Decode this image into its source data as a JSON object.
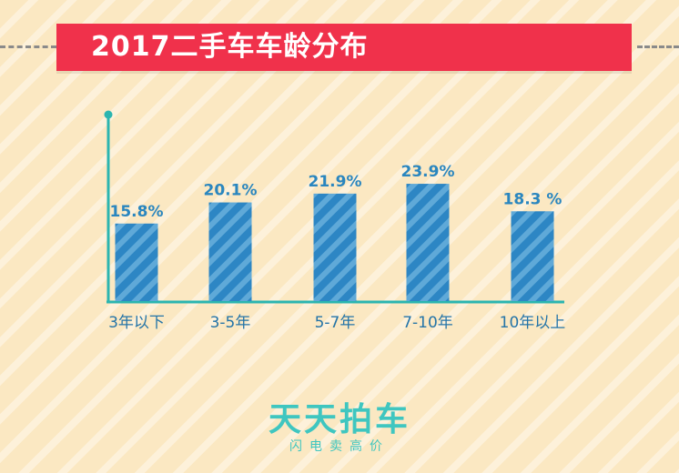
{
  "header": {
    "title": "2017二手车车龄分布"
  },
  "chart_data": {
    "type": "bar",
    "title": "2017二手车车龄分布",
    "categories": [
      "3年以下",
      "3-5年",
      "5-7年",
      "7-10年",
      "10年以上"
    ],
    "values": [
      15.8,
      20.1,
      21.9,
      23.9,
      18.3
    ],
    "value_labels": [
      "15.8%",
      "20.1%",
      "21.9%",
      "23.9%",
      "18.3 %"
    ],
    "unit": "%",
    "ylim": [
      0,
      38
    ],
    "grid": false,
    "colors": {
      "bar": "#2d86c4",
      "bar_stripe": "#5fa9d8",
      "axis": "#2bb5b0",
      "label": "#2a86bf"
    }
  },
  "brand": {
    "name": "天天拍车",
    "tagline": "闪电卖高价"
  }
}
